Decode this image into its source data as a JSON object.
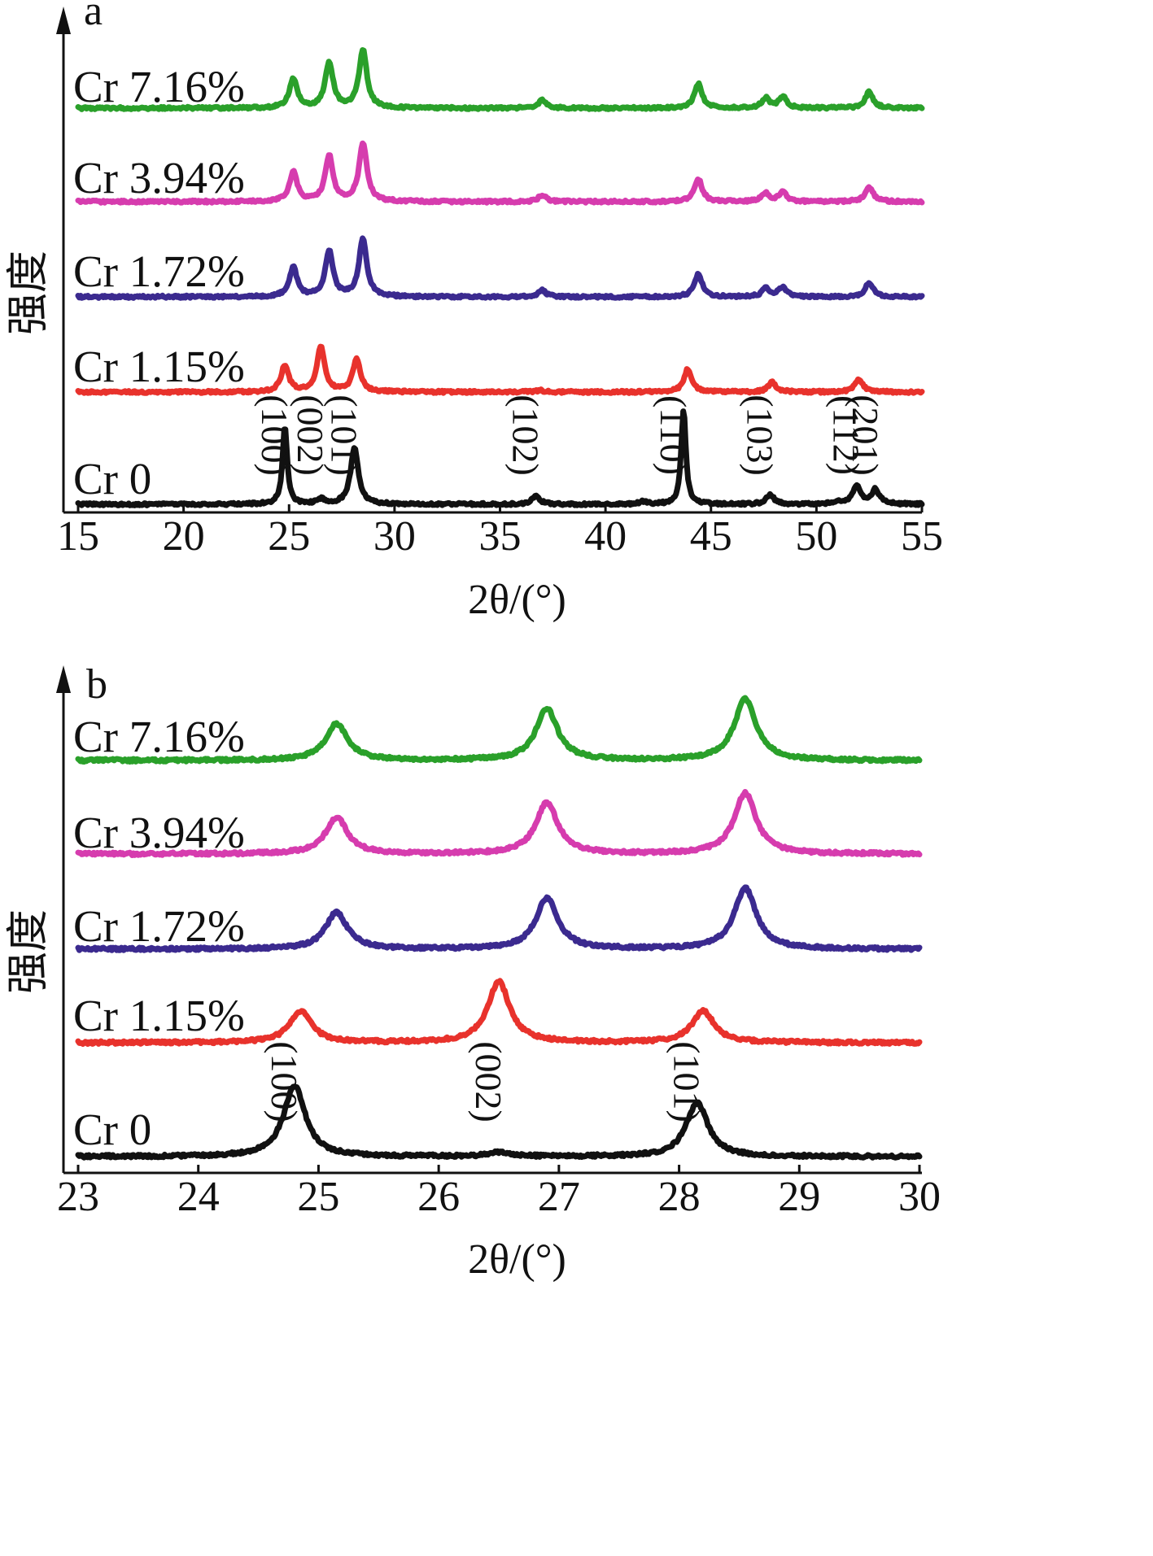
{
  "chart_data": [
    {
      "type": "line",
      "panel": "a",
      "xlabel": "2θ/(°)",
      "ylabel": "强度",
      "xlim": [
        15,
        55
      ],
      "xticks": [
        15,
        20,
        25,
        30,
        35,
        40,
        45,
        50,
        55
      ],
      "grid": false,
      "peak_annotations": [
        {
          "label": "(100)",
          "x": 24.8
        },
        {
          "label": "(002)",
          "x": 26.5
        },
        {
          "label": "(101)",
          "x": 28.1
        },
        {
          "label": "(102)",
          "x": 36.7
        },
        {
          "label": "(110)",
          "x": 43.7
        },
        {
          "label": "(103)",
          "x": 47.8
        },
        {
          "label": "(112)",
          "x": 51.9
        },
        {
          "label": "(201)",
          "x": 52.8
        }
      ],
      "series": [
        {
          "name": "Cr 7.16%",
          "color": "#2aa02a",
          "peaks": [
            [
              25.2,
              0.9
            ],
            [
              26.9,
              1.4
            ],
            [
              28.5,
              1.8
            ],
            [
              37.0,
              0.25
            ],
            [
              44.4,
              0.75
            ],
            [
              47.6,
              0.3
            ],
            [
              48.4,
              0.35
            ],
            [
              52.5,
              0.5
            ]
          ]
        },
        {
          "name": "Cr 3.94%",
          "color": "#d63cae",
          "peaks": [
            [
              25.2,
              0.9
            ],
            [
              26.9,
              1.4
            ],
            [
              28.5,
              1.8
            ],
            [
              37.0,
              0.2
            ],
            [
              44.4,
              0.7
            ],
            [
              47.6,
              0.25
            ],
            [
              48.4,
              0.3
            ],
            [
              52.5,
              0.45
            ]
          ]
        },
        {
          "name": "Cr 1.72%",
          "color": "#3b2a8f",
          "peaks": [
            [
              25.2,
              0.9
            ],
            [
              26.9,
              1.4
            ],
            [
              28.5,
              1.8
            ],
            [
              37.0,
              0.2
            ],
            [
              44.4,
              0.7
            ],
            [
              47.6,
              0.25
            ],
            [
              48.4,
              0.3
            ],
            [
              52.5,
              0.45
            ]
          ]
        },
        {
          "name": "Cr 1.15%",
          "color": "#e8322c",
          "peaks": [
            [
              24.8,
              0.8
            ],
            [
              26.5,
              1.4
            ],
            [
              28.2,
              1.0
            ],
            [
              36.9,
              0.05
            ],
            [
              43.9,
              0.7
            ],
            [
              47.9,
              0.3
            ],
            [
              52.0,
              0.4
            ]
          ]
        },
        {
          "name": "Cr 0",
          "color": "#111111",
          "peaks": [
            [
              24.8,
              2.4
            ],
            [
              26.5,
              0.15
            ],
            [
              28.1,
              1.75
            ],
            [
              36.7,
              0.25
            ],
            [
              41.8,
              0.08
            ],
            [
              43.7,
              2.9
            ],
            [
              47.8,
              0.3
            ],
            [
              51.0,
              0.07
            ],
            [
              51.9,
              0.55
            ],
            [
              52.8,
              0.45
            ]
          ]
        }
      ]
    },
    {
      "type": "line",
      "panel": "b",
      "xlabel": "2θ/(°)",
      "ylabel": "强度",
      "xlim": [
        23,
        30
      ],
      "xticks": [
        23,
        24,
        25,
        26,
        27,
        28,
        29,
        30
      ],
      "grid": false,
      "peak_annotations": [
        {
          "label": "(100)",
          "x": 24.8
        },
        {
          "label": "(002)",
          "x": 26.5
        },
        {
          "label": "(101)",
          "x": 28.15
        }
      ],
      "series": [
        {
          "name": "Cr 7.16%",
          "color": "#2aa02a",
          "peaks": [
            [
              25.15,
              0.75
            ],
            [
              26.9,
              1.05
            ],
            [
              28.55,
              1.25
            ]
          ]
        },
        {
          "name": "Cr 3.94%",
          "color": "#d63cae",
          "peaks": [
            [
              25.15,
              0.75
            ],
            [
              26.9,
              1.05
            ],
            [
              28.55,
              1.25
            ]
          ]
        },
        {
          "name": "Cr 1.72%",
          "color": "#3b2a8f",
          "peaks": [
            [
              25.15,
              0.75
            ],
            [
              26.9,
              1.05
            ],
            [
              28.55,
              1.25
            ]
          ]
        },
        {
          "name": "Cr 1.15%",
          "color": "#e8322c",
          "peaks": [
            [
              24.85,
              0.65
            ],
            [
              26.5,
              1.25
            ],
            [
              28.2,
              0.65
            ]
          ]
        },
        {
          "name": "Cr 0",
          "color": "#111111",
          "peaks": [
            [
              24.8,
              1.45
            ],
            [
              26.5,
              0.08
            ],
            [
              28.15,
              1.1
            ]
          ]
        }
      ]
    }
  ]
}
